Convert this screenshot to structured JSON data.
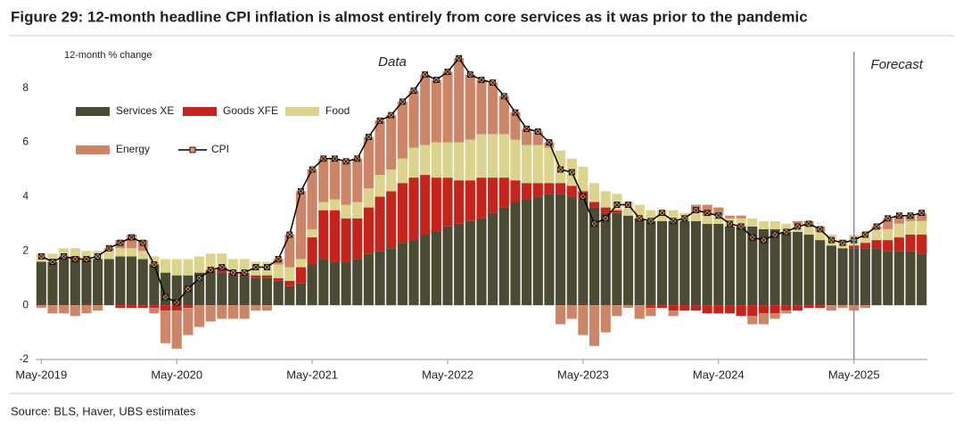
{
  "chart_data": {
    "type": "stacked-bar-line",
    "title": "Figure 29: 12-month headline CPI inflation is almost entirely from core services as it was prior to the pandemic",
    "y_label": "12-month % change",
    "source": "Source: BLS, Haver, UBS estimates",
    "annotations": [
      {
        "text": "Data"
      },
      {
        "text": "Forecast",
        "x": "May-2025"
      }
    ],
    "categories": [
      "May-2019",
      null,
      null,
      null,
      null,
      null,
      null,
      null,
      null,
      null,
      null,
      null,
      "May-2020",
      null,
      null,
      null,
      null,
      null,
      null,
      null,
      null,
      null,
      null,
      null,
      "May-2021",
      null,
      null,
      null,
      null,
      null,
      null,
      null,
      null,
      null,
      null,
      null,
      "May-2022",
      null,
      null,
      null,
      null,
      null,
      null,
      null,
      null,
      null,
      null,
      null,
      "May-2023",
      null,
      null,
      null,
      null,
      null,
      null,
      null,
      null,
      null,
      null,
      null,
      "May-2024",
      null,
      null,
      null,
      null,
      null,
      null,
      null,
      null,
      null,
      null,
      null,
      "May-2025",
      null,
      null,
      null,
      null,
      null,
      null
    ],
    "series": [
      {
        "name": "Services XE",
        "color": "#4b4a33",
        "values": [
          1.6,
          1.6,
          1.7,
          1.7,
          1.7,
          1.7,
          1.7,
          1.8,
          1.8,
          1.7,
          1.5,
          1.2,
          1.1,
          1.1,
          1.2,
          1.2,
          1.2,
          1.1,
          1.1,
          1.0,
          1.0,
          0.9,
          0.7,
          0.8,
          1.5,
          1.7,
          1.6,
          1.6,
          1.7,
          1.9,
          2.0,
          2.1,
          2.3,
          2.4,
          2.6,
          2.7,
          2.9,
          3.0,
          3.1,
          3.2,
          3.4,
          3.6,
          3.8,
          3.9,
          4.0,
          4.1,
          4.1,
          4.0,
          3.9,
          3.6,
          3.4,
          3.4,
          3.3,
          3.2,
          3.1,
          3.1,
          3.1,
          3.1,
          3.1,
          3.0,
          3.0,
          2.9,
          2.9,
          2.9,
          2.8,
          2.8,
          2.7,
          2.7,
          2.6,
          2.4,
          2.2,
          2.1,
          2.1,
          2.1,
          2.1,
          2.0,
          2.0,
          2.0,
          1.9
        ]
      },
      {
        "name": "Goods XFE",
        "color": "#c4241c",
        "values": [
          0.0,
          0.0,
          0.1,
          0.1,
          0.0,
          0.0,
          0.0,
          -0.1,
          -0.1,
          -0.1,
          -0.1,
          -0.2,
          -0.2,
          -0.1,
          0.0,
          0.1,
          0.2,
          0.1,
          0.1,
          0.1,
          0.1,
          0.1,
          0.2,
          0.6,
          1.0,
          1.8,
          1.9,
          1.6,
          1.5,
          1.7,
          2.0,
          2.1,
          2.2,
          2.3,
          2.2,
          2.0,
          1.8,
          1.6,
          1.5,
          1.5,
          1.3,
          1.1,
          0.8,
          0.6,
          0.5,
          0.4,
          0.4,
          0.4,
          0.3,
          0.2,
          0.2,
          0.1,
          0.0,
          0.0,
          -0.1,
          -0.1,
          -0.2,
          -0.2,
          -0.2,
          -0.3,
          -0.3,
          -0.3,
          -0.4,
          -0.4,
          -0.3,
          -0.3,
          -0.2,
          -0.2,
          -0.1,
          -0.1,
          0.0,
          0.0,
          0.1,
          0.2,
          0.3,
          0.4,
          0.5,
          0.6,
          0.7
        ]
      },
      {
        "name": "Food",
        "color": "#dcd38d",
        "values": [
          0.3,
          0.3,
          0.3,
          0.3,
          0.3,
          0.3,
          0.3,
          0.3,
          0.3,
          0.3,
          0.3,
          0.5,
          0.6,
          0.6,
          0.6,
          0.6,
          0.5,
          0.5,
          0.5,
          0.5,
          0.5,
          0.5,
          0.5,
          0.3,
          0.3,
          0.3,
          0.4,
          0.5,
          0.6,
          0.7,
          0.8,
          0.8,
          0.9,
          1.1,
          1.1,
          1.3,
          1.3,
          1.4,
          1.5,
          1.6,
          1.6,
          1.6,
          1.5,
          1.4,
          1.4,
          1.3,
          1.2,
          1.0,
          0.9,
          0.7,
          0.6,
          0.6,
          0.5,
          0.5,
          0.4,
          0.4,
          0.4,
          0.3,
          0.3,
          0.3,
          0.3,
          0.3,
          0.3,
          0.3,
          0.3,
          0.3,
          0.3,
          0.3,
          0.3,
          0.3,
          0.4,
          0.3,
          0.4,
          0.4,
          0.4,
          0.4,
          0.5,
          0.5,
          0.5
        ]
      },
      {
        "name": "Energy",
        "color": "#cd8567",
        "values": [
          -0.1,
          -0.3,
          -0.3,
          -0.4,
          -0.3,
          -0.2,
          0.1,
          0.3,
          0.5,
          0.4,
          -0.2,
          -1.2,
          -1.4,
          -1.0,
          -0.8,
          -0.6,
          -0.5,
          -0.5,
          -0.5,
          -0.2,
          -0.2,
          0.2,
          1.2,
          2.5,
          2.2,
          1.6,
          1.5,
          1.6,
          1.6,
          1.9,
          2.0,
          2.0,
          2.1,
          2.1,
          2.6,
          2.3,
          2.6,
          3.1,
          2.4,
          2.0,
          1.9,
          1.4,
          1.0,
          0.6,
          0.5,
          0.2,
          -0.7,
          -0.5,
          -1.1,
          -1.5,
          -1.0,
          -0.4,
          -0.1,
          -0.5,
          -0.3,
          0.0,
          -0.2,
          0.0,
          0.3,
          0.4,
          0.3,
          0.1,
          0.1,
          -0.3,
          -0.4,
          -0.2,
          -0.1,
          0.1,
          0.2,
          0.2,
          -0.2,
          -0.1,
          -0.2,
          -0.1,
          0.1,
          0.4,
          0.3,
          0.2,
          0.3
        ]
      }
    ],
    "line": {
      "name": "CPI",
      "color": "#000000",
      "marker_color": "#d9926f",
      "values": [
        1.8,
        1.6,
        1.8,
        1.7,
        1.7,
        1.8,
        2.1,
        2.3,
        2.5,
        2.3,
        1.5,
        0.3,
        0.1,
        0.6,
        1.0,
        1.3,
        1.4,
        1.2,
        1.2,
        1.4,
        1.4,
        1.7,
        2.6,
        4.2,
        5.0,
        5.4,
        5.4,
        5.3,
        5.4,
        6.2,
        6.8,
        7.0,
        7.5,
        7.9,
        8.5,
        8.3,
        8.6,
        9.1,
        8.5,
        8.3,
        8.2,
        7.7,
        7.1,
        6.5,
        6.4,
        6.0,
        5.0,
        4.9,
        4.0,
        3.0,
        3.2,
        3.7,
        3.7,
        3.2,
        3.1,
        3.4,
        3.1,
        3.2,
        3.5,
        3.4,
        3.3,
        3.0,
        2.9,
        2.5,
        2.4,
        2.6,
        2.7,
        2.9,
        3.0,
        2.8,
        2.4,
        2.3,
        2.4,
        2.6,
        2.9,
        3.2,
        3.3,
        3.3,
        3.4
      ]
    },
    "ylim": [
      -2,
      9.6
    ],
    "yticks": [
      -2,
      0,
      2,
      4,
      6,
      8
    ],
    "grid": false
  }
}
